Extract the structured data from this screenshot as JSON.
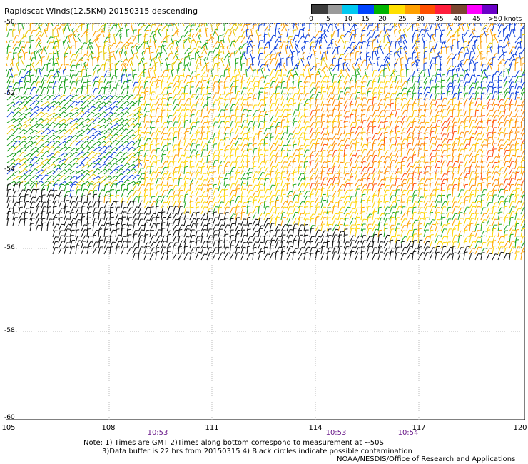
{
  "title": "Rapidscat Winds(12.5KM) 20150315 descending",
  "legend": {
    "labels": [
      "0",
      "5",
      "10",
      "15",
      "20",
      "25",
      "30",
      "35",
      "40",
      "45",
      ">50 knots"
    ],
    "colors": [
      "#3c3c3c",
      "#9a9a9a",
      "#00c8f0",
      "#0044ff",
      "#00b400",
      "#ffe000",
      "#ffa000",
      "#ff5000",
      "#ff1e3c",
      "#7a4630",
      "#ff00ff",
      "#6a00c8"
    ]
  },
  "map": {
    "lat_labels": [
      "-50",
      "-52",
      "-54",
      "-56",
      "-58",
      "-60"
    ],
    "lon_labels": [
      "105",
      "108",
      "111",
      "114",
      "117",
      "120"
    ],
    "time_labels": [
      {
        "text": "10:53",
        "lon": 109.4
      },
      {
        "text": "10:53",
        "lon": 114.6
      },
      {
        "text": "10:54",
        "lon": 116.7
      }
    ]
  },
  "notes": [
    "Note: 1) Times are GMT 2)Times along bottom correspond to measurement at ~50S",
    "3)Data buffer is 22 hrs from 20150315 4) Black circles indicate possible contamination"
  ],
  "credit": "NOAA/NESDIS/Office of Research and Applications"
}
